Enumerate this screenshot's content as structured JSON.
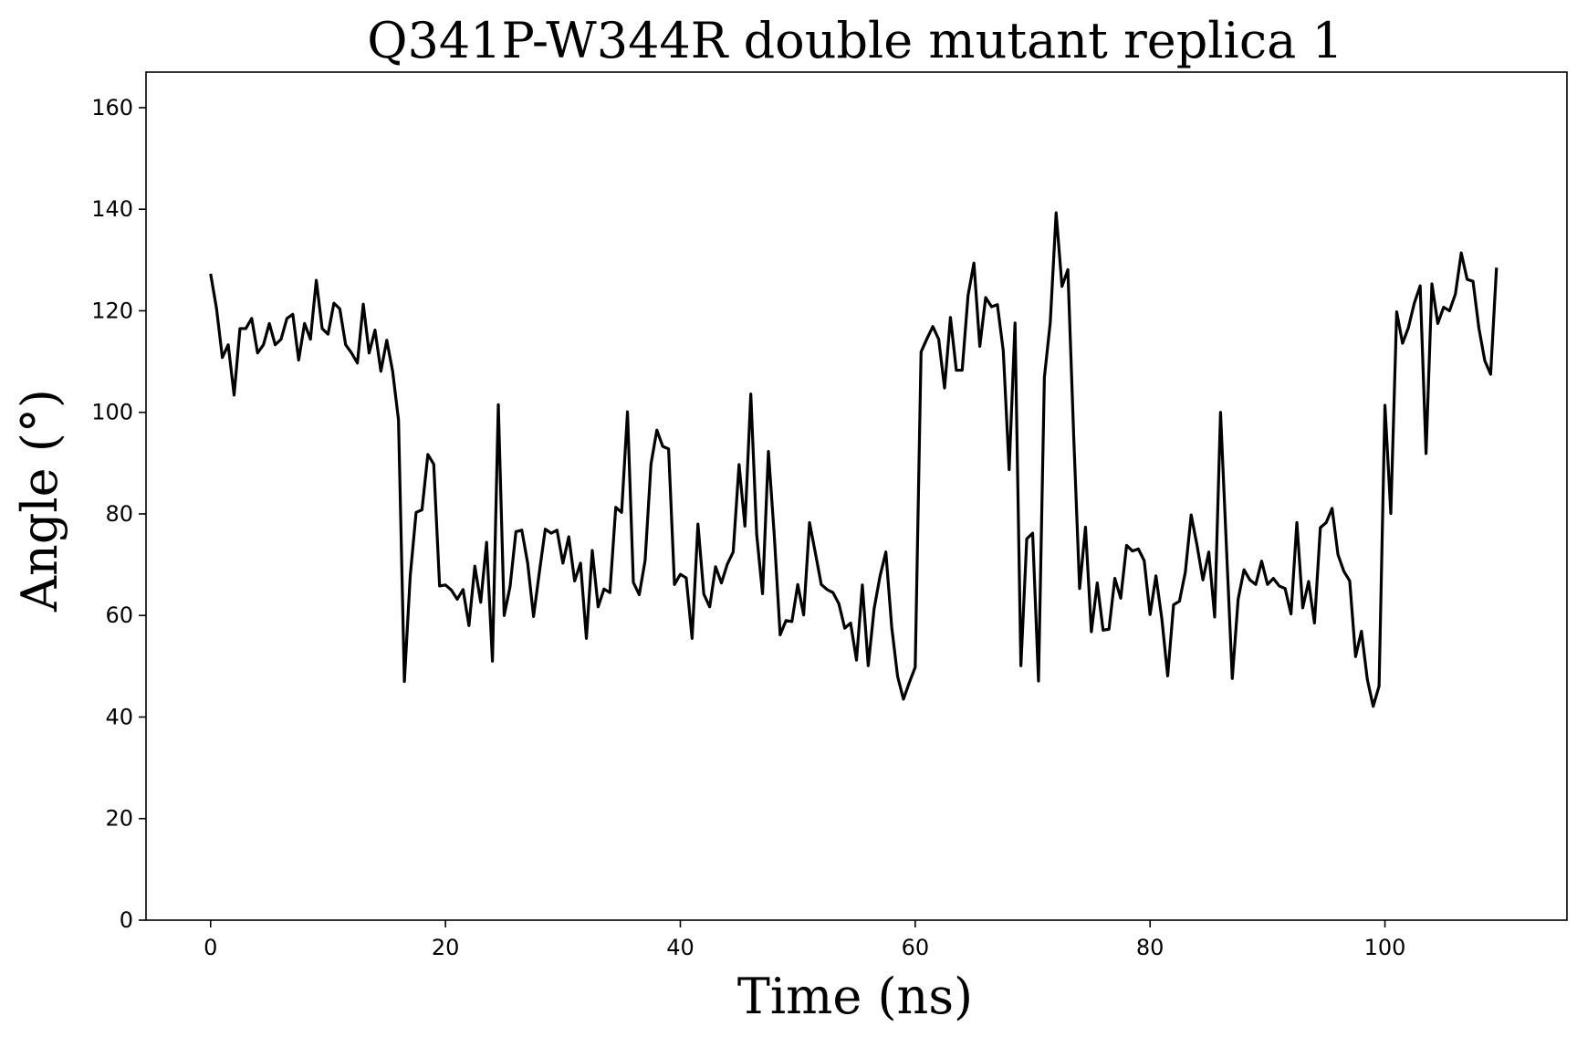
{
  "chart_data": {
    "type": "line",
    "title": "Q341P-W344R double mutant replica 1",
    "xlabel": "Time (ns)",
    "ylabel": "Angle (°)",
    "xlim": [
      -5.5,
      115.5
    ],
    "ylim": [
      0,
      167
    ],
    "xticks": [
      0,
      20,
      40,
      60,
      80,
      100
    ],
    "yticks": [
      0,
      20,
      40,
      60,
      80,
      100,
      120,
      140,
      160
    ],
    "grid": false,
    "legend": "none",
    "line_color": "#000000",
    "series": [
      {
        "x": [
          0,
          0.5,
          1,
          1.5,
          2,
          2.5,
          3,
          3.5,
          4,
          4.5,
          5,
          5.5,
          6,
          6.5,
          7,
          7.5,
          8,
          8.5,
          9,
          9.5,
          10,
          10.5,
          11,
          11.5,
          12,
          12.5,
          13,
          13.5,
          14,
          14.5,
          15,
          15.5,
          16,
          16.5,
          17,
          17.5,
          18,
          18.5,
          19,
          19.5,
          20,
          20.5,
          21,
          21.5,
          22,
          22.5,
          23,
          23.5,
          24,
          24.5,
          25,
          25.5,
          26,
          26.5,
          27,
          27.5,
          28,
          28.5,
          29,
          29.5,
          30,
          30.5,
          31,
          31.5,
          32,
          32.5,
          33,
          33.5,
          34,
          34.5,
          35,
          35.5,
          36,
          36.5,
          37,
          37.5,
          38,
          38.5,
          39,
          39.5,
          40,
          40.5,
          41,
          41.5,
          42,
          42.5,
          43,
          43.5,
          44,
          44.5,
          45,
          45.5,
          46,
          46.5,
          47,
          47.5,
          48,
          48.5,
          49,
          49.5,
          50,
          50.5,
          51,
          51.5,
          52,
          52.5,
          53,
          53.5,
          54,
          54.5,
          55,
          55.5,
          56,
          56.5,
          57,
          57.5,
          58,
          58.5,
          59,
          59.5,
          60,
          60.5,
          61,
          61.5,
          62,
          62.5,
          63,
          63.5,
          64,
          64.5,
          65,
          65.5,
          66,
          66.5,
          67,
          67.5,
          68,
          68.5,
          69,
          69.5,
          70,
          70.5,
          71,
          71.5,
          72,
          72.5,
          73,
          73.5,
          74,
          74.5,
          75,
          75.5,
          76,
          76.5,
          77,
          77.5,
          78,
          78.5,
          79,
          79.5,
          80,
          80.5,
          81,
          81.5,
          82,
          82.5,
          83,
          83.5,
          84,
          84.5,
          85,
          85.5,
          86,
          86.5,
          87,
          87.5,
          88,
          88.5,
          89,
          89.5,
          90,
          90.5,
          91,
          91.5,
          92,
          92.5,
          93,
          93.5,
          94,
          94.5,
          95,
          95.5,
          96,
          96.5,
          97,
          97.5,
          98,
          98.5,
          99,
          99.5,
          100,
          100.5,
          101,
          101.5,
          102,
          102.5,
          103,
          103.5,
          104,
          104.5,
          105,
          105.5,
          106,
          106.5,
          107,
          107.5,
          108,
          108.5,
          109,
          109.5
        ],
        "y": [
          127.3,
          120.5,
          110.8,
          113.3,
          103.4,
          116.5,
          116.5,
          118.5,
          111.7,
          113.3,
          117.5,
          113.3,
          114.4,
          118.5,
          119.3,
          110.3,
          117.5,
          114.4,
          126.0,
          116.5,
          115.4,
          121.5,
          120.4,
          113.3,
          111.7,
          109.7,
          121.3,
          111.7,
          116.2,
          108.1,
          114.2,
          108.1,
          98.5,
          47.0,
          67.8,
          80.3,
          80.8,
          91.7,
          89.8,
          65.8,
          66.0,
          65.0,
          63.2,
          65.1,
          58.0,
          69.7,
          62.6,
          74.4,
          51.0,
          101.5,
          60.0,
          65.7,
          76.5,
          76.8,
          70.3,
          59.8,
          68.6,
          77.0,
          76.2,
          76.8,
          70.3,
          75.5,
          66.8,
          70.3,
          55.5,
          72.8,
          61.7,
          65.2,
          64.5,
          81.3,
          80.3,
          100.1,
          66.5,
          64.1,
          70.8,
          89.8,
          96.5,
          93.3,
          92.8,
          66.1,
          68.1,
          67.4,
          55.5,
          78.0,
          64.2,
          61.7,
          69.6,
          66.4,
          70.1,
          72.5,
          89.7,
          77.6,
          103.6,
          76.0,
          64.3,
          92.3,
          75.7,
          56.2,
          59.0,
          58.8,
          66.1,
          60.1,
          78.3,
          72.3,
          66.1,
          65.1,
          64.5,
          62.3,
          57.5,
          58.5,
          51.2,
          66.0,
          50.1,
          61.3,
          67.7,
          72.5,
          57.7,
          48.0,
          43.5,
          46.8,
          49.8,
          111.9,
          114.5,
          116.9,
          114.4,
          104.8,
          118.7,
          108.3,
          108.3,
          123.0,
          129.4,
          113.0,
          122.6,
          120.8,
          121.2,
          112.1,
          88.7,
          117.6,
          50.1,
          75.1,
          76.2,
          47.1,
          106.9,
          117.7,
          139.3,
          124.8,
          128.1,
          95.1,
          65.3,
          77.4,
          56.8,
          66.4,
          57.1,
          57.3,
          67.3,
          63.4,
          73.8,
          72.7,
          73.1,
          70.8,
          60.2,
          67.8,
          59.4,
          48.1,
          62.1,
          62.8,
          68.5,
          79.8,
          73.8,
          67.0,
          72.5,
          59.7,
          100.0,
          73.6,
          47.6,
          63.2,
          69.0,
          67.0,
          66.1,
          70.7,
          66.1,
          67.3,
          65.8,
          65.3,
          60.3,
          78.3,
          61.5,
          66.7,
          58.5,
          77.3,
          78.3,
          81.1,
          72.0,
          68.7,
          66.8,
          51.9,
          56.9,
          47.4,
          42.1,
          46.1,
          101.4,
          80.1,
          119.8,
          113.6,
          116.7,
          121.5,
          124.9,
          91.9,
          125.3,
          117.5,
          120.7,
          120.0,
          123.3,
          131.4,
          126.2,
          125.8,
          116.6,
          110.2,
          107.5,
          128.5
        ]
      }
    ]
  }
}
